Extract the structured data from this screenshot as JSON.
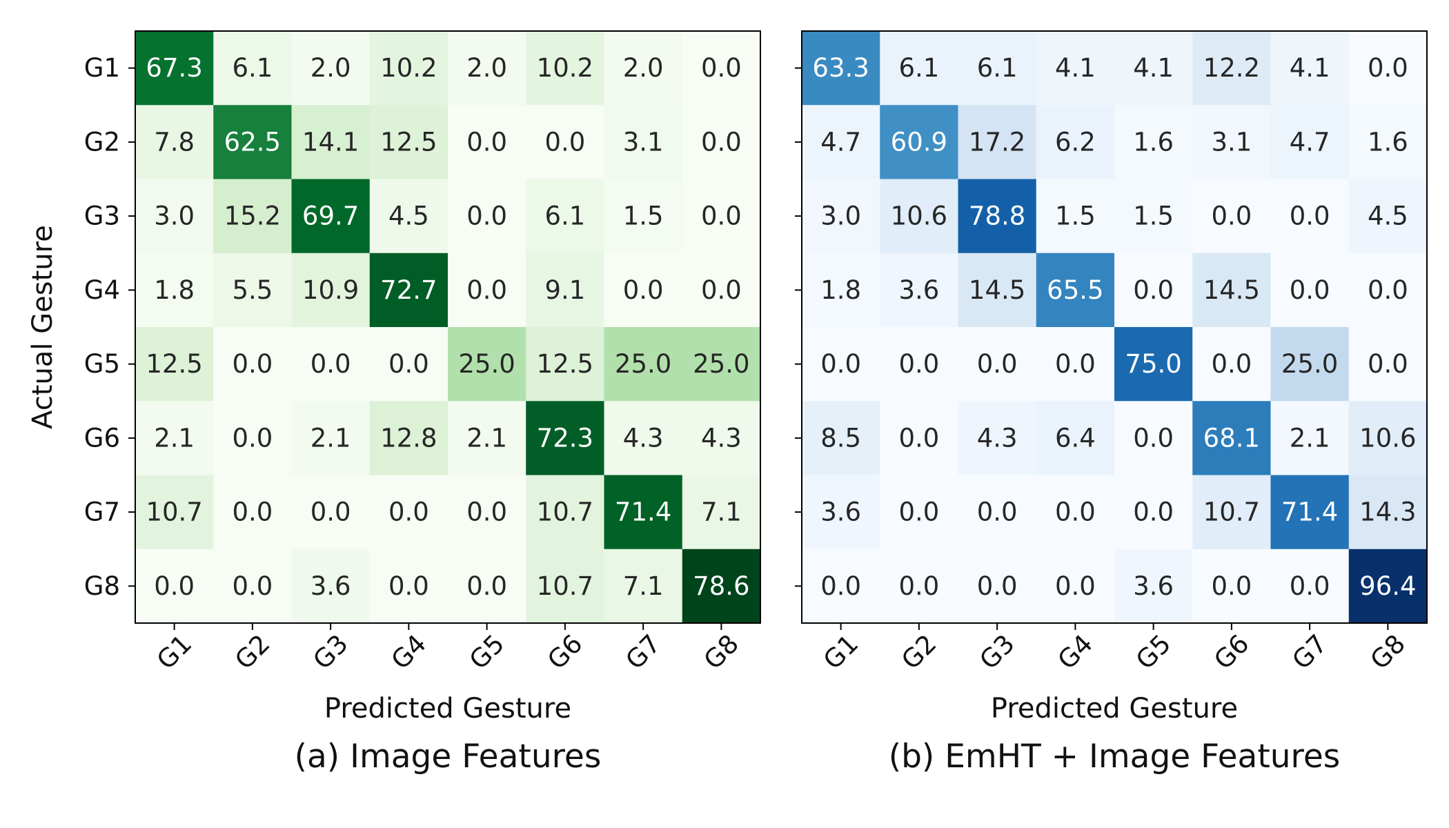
{
  "chart_data": [
    {
      "type": "heatmap",
      "caption": "(a) Image Features",
      "xlabel": "Predicted Gesture",
      "ylabel": "Actual Gesture",
      "x_categories": [
        "G1",
        "G2",
        "G3",
        "G4",
        "G5",
        "G6",
        "G7",
        "G8"
      ],
      "y_categories": [
        "G1",
        "G2",
        "G3",
        "G4",
        "G5",
        "G6",
        "G7",
        "G8"
      ],
      "colormap": "Greens",
      "vmax": 78.6,
      "values": [
        [
          67.3,
          6.1,
          2.0,
          10.2,
          2.0,
          10.2,
          2.0,
          0.0
        ],
        [
          7.8,
          62.5,
          14.1,
          12.5,
          0.0,
          0.0,
          3.1,
          0.0
        ],
        [
          3.0,
          15.2,
          69.7,
          4.5,
          0.0,
          6.1,
          1.5,
          0.0
        ],
        [
          1.8,
          5.5,
          10.9,
          72.7,
          0.0,
          9.1,
          0.0,
          0.0
        ],
        [
          12.5,
          0.0,
          0.0,
          0.0,
          25.0,
          12.5,
          25.0,
          25.0
        ],
        [
          2.1,
          0.0,
          2.1,
          12.8,
          2.1,
          72.3,
          4.3,
          4.3
        ],
        [
          10.7,
          0.0,
          0.0,
          0.0,
          0.0,
          10.7,
          71.4,
          7.1
        ],
        [
          0.0,
          0.0,
          3.6,
          0.0,
          0.0,
          10.7,
          7.1,
          78.6
        ]
      ]
    },
    {
      "type": "heatmap",
      "caption": "(b) EmHT + Image Features",
      "xlabel": "Predicted Gesture",
      "ylabel": "",
      "x_categories": [
        "G1",
        "G2",
        "G3",
        "G4",
        "G5",
        "G6",
        "G7",
        "G8"
      ],
      "y_categories": [
        "G1",
        "G2",
        "G3",
        "G4",
        "G5",
        "G6",
        "G7",
        "G8"
      ],
      "colormap": "Blues",
      "vmax": 96.4,
      "values": [
        [
          63.3,
          6.1,
          6.1,
          4.1,
          4.1,
          12.2,
          4.1,
          0.0
        ],
        [
          4.7,
          60.9,
          17.2,
          6.2,
          1.6,
          3.1,
          4.7,
          1.6
        ],
        [
          3.0,
          10.6,
          78.8,
          1.5,
          1.5,
          0.0,
          0.0,
          4.5
        ],
        [
          1.8,
          3.6,
          14.5,
          65.5,
          0.0,
          14.5,
          0.0,
          0.0
        ],
        [
          0.0,
          0.0,
          0.0,
          0.0,
          75.0,
          0.0,
          25.0,
          0.0
        ],
        [
          8.5,
          0.0,
          4.3,
          6.4,
          0.0,
          68.1,
          2.1,
          10.6
        ],
        [
          3.6,
          0.0,
          0.0,
          0.0,
          0.0,
          10.7,
          71.4,
          14.3
        ],
        [
          0.0,
          0.0,
          0.0,
          0.0,
          3.6,
          0.0,
          0.0,
          96.4
        ]
      ]
    }
  ]
}
